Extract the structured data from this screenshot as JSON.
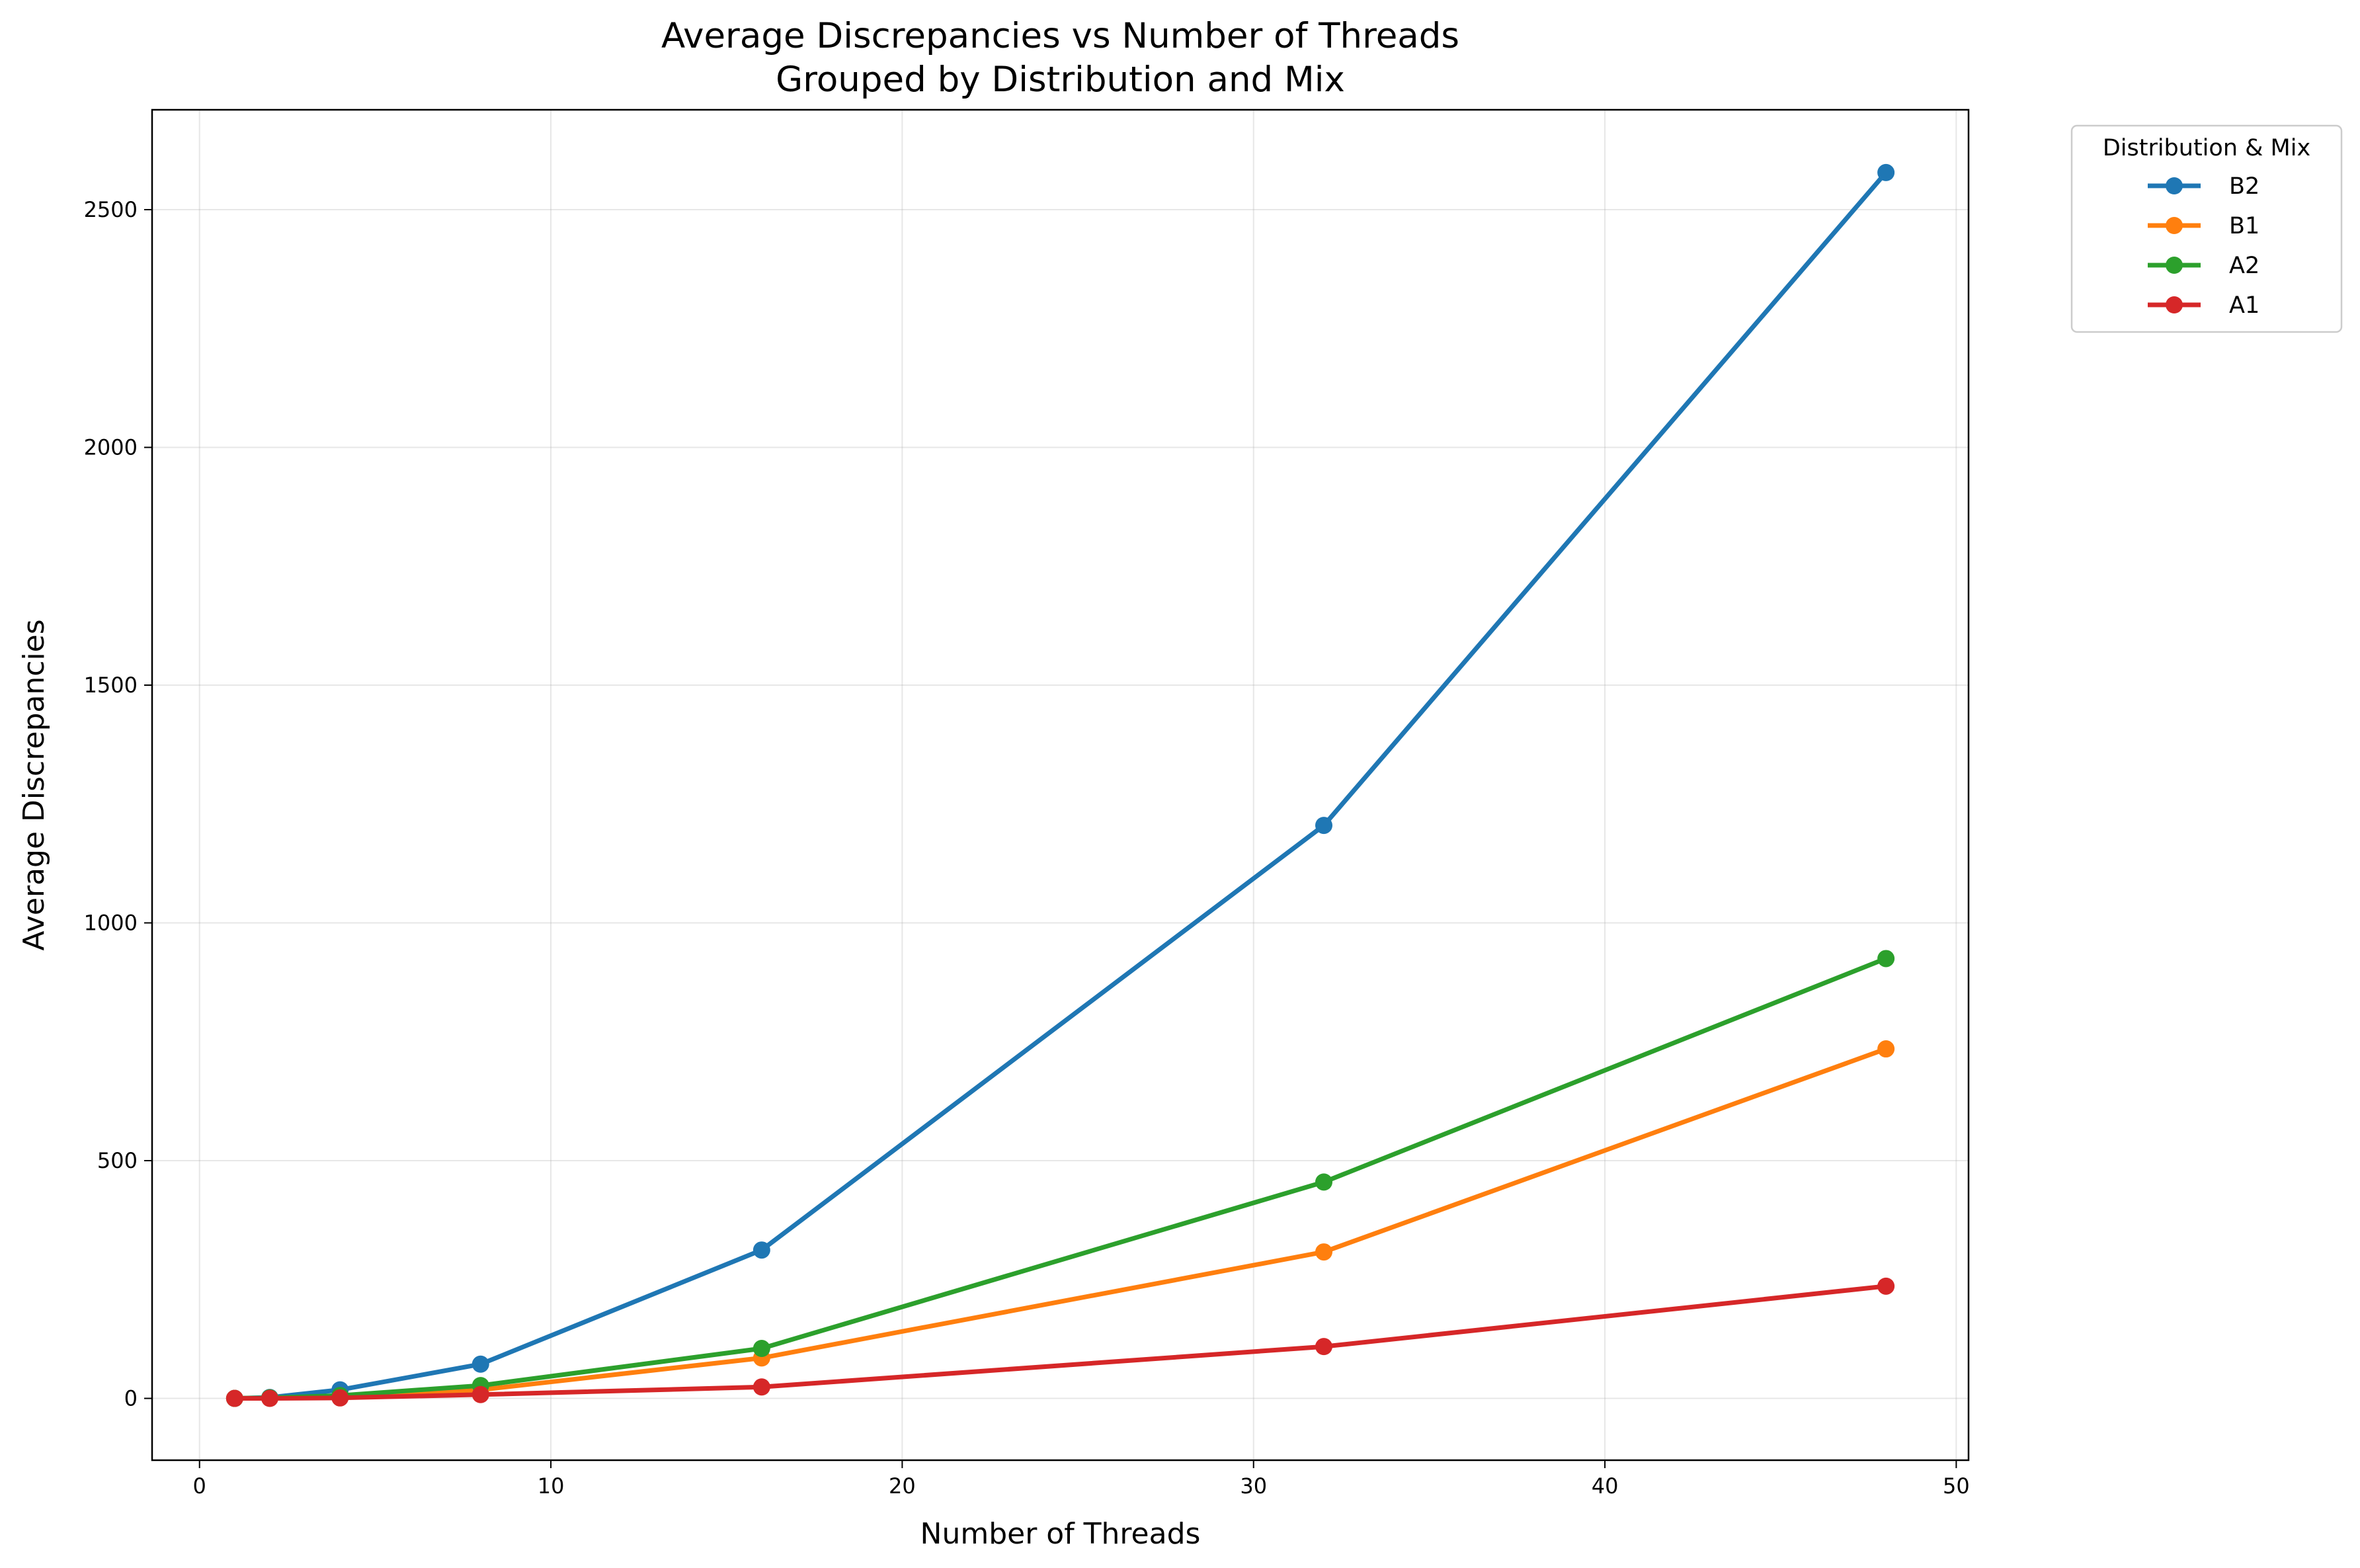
{
  "chart_data": {
    "type": "line",
    "title": "Average Discrepancies vs Number of Threads",
    "subtitle": "Grouped by Distribution and Mix",
    "xlabel": "Number of Threads",
    "ylabel": "Average Discrepancies",
    "xlim": [
      -1.35,
      50.35
    ],
    "ylim": [
      -130,
      2710
    ],
    "xticks": [
      0,
      10,
      20,
      30,
      40,
      50
    ],
    "yticks": [
      0,
      500,
      1000,
      1500,
      2000,
      2500
    ],
    "grid": true,
    "legend": {
      "title": "Distribution & Mix",
      "placement": "outside-top-right"
    },
    "x": [
      1,
      2,
      4,
      8,
      16,
      32,
      48
    ],
    "series": [
      {
        "name": "B2",
        "color": "#1f77b4",
        "values": [
          0,
          2,
          18,
          72,
          312,
          1205,
          2578
        ]
      },
      {
        "name": "B1",
        "color": "#ff7f0e",
        "values": [
          0,
          1,
          5,
          18,
          85,
          308,
          735
        ]
      },
      {
        "name": "A2",
        "color": "#2ca02c",
        "values": [
          0,
          1,
          6,
          27,
          105,
          455,
          925
        ]
      },
      {
        "name": "A1",
        "color": "#d62728",
        "values": [
          0,
          0,
          1,
          8,
          24,
          109,
          236
        ]
      }
    ]
  }
}
